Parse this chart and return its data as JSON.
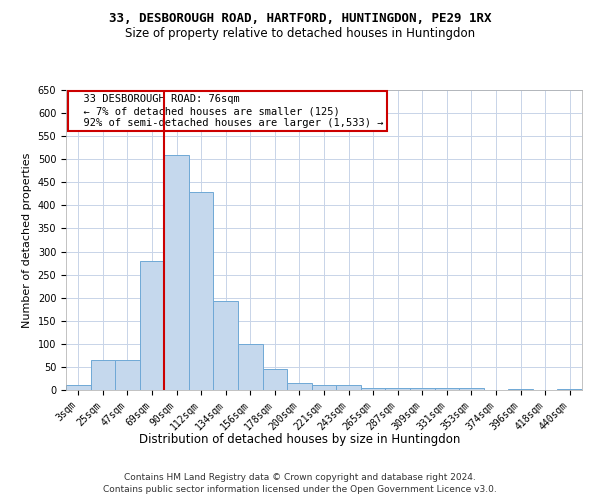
{
  "title1": "33, DESBOROUGH ROAD, HARTFORD, HUNTINGDON, PE29 1RX",
  "title2": "Size of property relative to detached houses in Huntingdon",
  "xlabel": "Distribution of detached houses by size in Huntingdon",
  "ylabel": "Number of detached properties",
  "categories": [
    "3sqm",
    "25sqm",
    "47sqm",
    "69sqm",
    "90sqm",
    "112sqm",
    "134sqm",
    "156sqm",
    "178sqm",
    "200sqm",
    "221sqm",
    "243sqm",
    "265sqm",
    "287sqm",
    "309sqm",
    "331sqm",
    "353sqm",
    "374sqm",
    "396sqm",
    "418sqm",
    "440sqm"
  ],
  "values": [
    10,
    65,
    65,
    280,
    510,
    430,
    192,
    100,
    45,
    15,
    10,
    10,
    5,
    5,
    5,
    5,
    5,
    0,
    3,
    0,
    3
  ],
  "bar_color": "#c5d8ed",
  "bar_edge_color": "#6fa8d6",
  "vline_x": 3.5,
  "vline_color": "#cc0000",
  "annotation_text": "  33 DESBOROUGH ROAD: 76sqm\n  ← 7% of detached houses are smaller (125)\n  92% of semi-detached houses are larger (1,533) →",
  "annotation_box_color": "#ffffff",
  "annotation_box_edge": "#cc0000",
  "ylim": [
    0,
    650
  ],
  "yticks": [
    0,
    50,
    100,
    150,
    200,
    250,
    300,
    350,
    400,
    450,
    500,
    550,
    600,
    650
  ],
  "footer1": "Contains HM Land Registry data © Crown copyright and database right 2024.",
  "footer2": "Contains public sector information licensed under the Open Government Licence v3.0.",
  "bg_color": "#ffffff",
  "grid_color": "#c8d4e8",
  "title1_fontsize": 9,
  "title2_fontsize": 8.5,
  "xlabel_fontsize": 8.5,
  "ylabel_fontsize": 8,
  "tick_fontsize": 7,
  "annot_fontsize": 7.5,
  "footer_fontsize": 6.5
}
